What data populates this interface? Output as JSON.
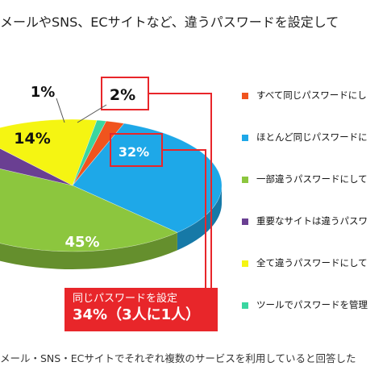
{
  "title": "メールやSNS、ECサイトなど、違うパスワードを設定して",
  "chart_data": {
    "type": "pie",
    "categories": [
      "すべて同じパスワードにし",
      "ほとんど同じパスワードに",
      "一部違うパスワードにして",
      "重要なサイトは違うパスワ",
      "全て違うパスワードにして",
      "ツールでパスワードを管理"
    ],
    "values": [
      2,
      32,
      45,
      6,
      14,
      1
    ],
    "labels": [
      "2%",
      "32%",
      "45%",
      "",
      "14%",
      "1%"
    ],
    "colors": [
      "#f0541e",
      "#1ea8e8",
      "#8cc63e",
      "#6a3f92",
      "#f5f512",
      "#3ad6a0"
    ]
  },
  "highlight": {
    "line1": "同じパスワードを設定",
    "line2": "34%（3人に1人）"
  },
  "footnote": "メール・SNS・ECサイトでそれぞれ複数のサービスを利用していると回答した"
}
